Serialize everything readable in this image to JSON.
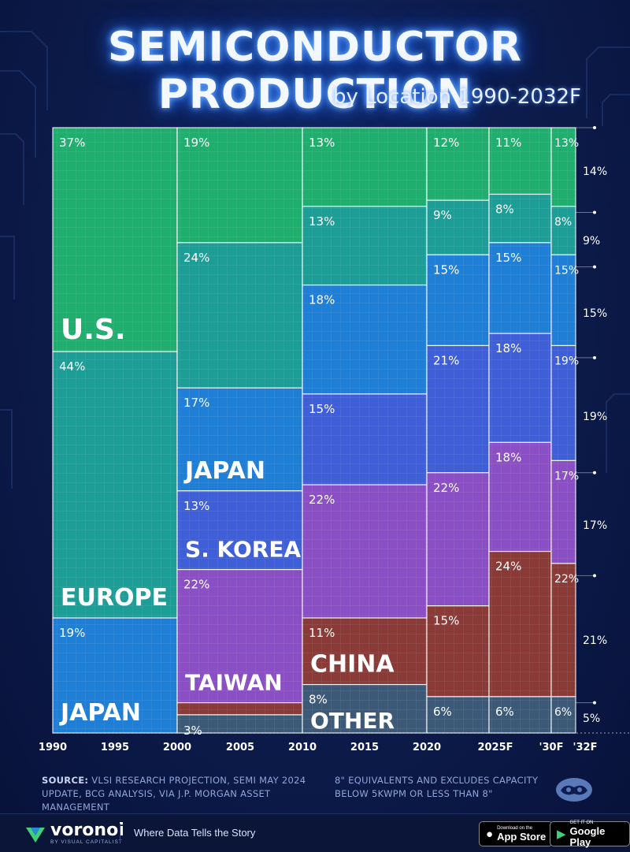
{
  "header": {
    "title": "SEMICONDUCTOR PRODUCTION",
    "subtitle": "by Location 1990-2032F"
  },
  "chart_data": {
    "type": "marimekko",
    "title": "SEMICONDUCTOR PRODUCTION",
    "subtitle": "by Location 1990-2032F",
    "x_tick_labels": [
      "1990",
      "1995",
      "2000",
      "2005",
      "2010",
      "2015",
      "2020",
      "2025F",
      "'30F",
      "'32F"
    ],
    "columns": [
      "1990",
      "2000",
      "2010",
      "2020",
      "2025F",
      "2030F",
      "2032F"
    ],
    "series": [
      {
        "name": "U.S.",
        "color": "#1fae6e",
        "values": [
          37,
          19,
          13,
          12,
          11,
          13,
          14
        ],
        "labels": [
          "37%",
          "19%",
          "13%",
          "12%",
          "11%",
          "13%",
          "14%"
        ]
      },
      {
        "name": "Europe",
        "color": "#1c9d95",
        "values": [
          44,
          24,
          13,
          9,
          8,
          8,
          9
        ],
        "labels": [
          "44%",
          "24%",
          "13%",
          "9%",
          "8%",
          "8%",
          "9%"
        ]
      },
      {
        "name": "Japan",
        "color": "#1f7ed6",
        "values": [
          19,
          17,
          18,
          15,
          15,
          15,
          15
        ],
        "labels": [
          "19%",
          "17%",
          "18%",
          "15%",
          "15%",
          "15%",
          "15%"
        ]
      },
      {
        "name": "S. Korea",
        "color": "#3e5fd8",
        "values": [
          0,
          13,
          15,
          21,
          18,
          19,
          19
        ],
        "labels": [
          "",
          "13%",
          "15%",
          "21%",
          "18%",
          "19%",
          "19%"
        ]
      },
      {
        "name": "Taiwan",
        "color": "#8a4fc4",
        "values": [
          0,
          22,
          22,
          22,
          18,
          17,
          17
        ],
        "labels": [
          "",
          "22%",
          "22%",
          "22%",
          "18%",
          "17%",
          "17%"
        ]
      },
      {
        "name": "China",
        "color": "#8a3b38",
        "values": [
          0,
          2,
          11,
          15,
          24,
          22,
          21
        ],
        "labels": [
          "",
          "",
          "11%",
          "15%",
          "24%",
          "22%",
          "21%"
        ]
      },
      {
        "name": "Other",
        "color": "#3c5a78",
        "values": [
          0,
          3,
          8,
          6,
          6,
          6,
          5
        ],
        "labels": [
          "",
          "3%",
          "8%",
          "6%",
          "6%",
          "6%",
          "5%"
        ]
      }
    ],
    "series_labels": [
      {
        "text": "U.S.",
        "column": 0
      },
      {
        "text": "EUROPE",
        "column": 0
      },
      {
        "text": "JAPAN",
        "column": 0
      },
      {
        "text": "JAPAN",
        "column": 1
      },
      {
        "text": "S. KOREA",
        "column": 1
      },
      {
        "text": "TAIWAN",
        "column": 1
      },
      {
        "text": "CHINA",
        "column": 2
      },
      {
        "text": "OTHER",
        "column": 2
      }
    ],
    "grid": true
  },
  "source": {
    "label": "SOURCE:",
    "text": "VLSI RESEARCH PROJECTION, SEMI MAY 2024 UPDATE, BCG ANALYSIS, VIA J.P. MORGAN ASSET MANAGEMENT"
  },
  "note": "8\" EQUIVALENTS AND EXCLUDES CAPACITY BELOW 5KWPM OR LESS THAN 8\"",
  "footer": {
    "brand": "voronoi",
    "brand_sub": "BY VISUAL CAPITALIST",
    "tagline": "Where Data Tells the Story",
    "app_store_small": "Download on the",
    "app_store_big": "App Store",
    "google_small": "GET IT ON",
    "google_big": "Google Play"
  },
  "icons": {
    "apple": "apple-icon",
    "play": "google-play-icon",
    "logo": "voronoi-logo-icon",
    "vc": "visual-capitalist-icon"
  }
}
